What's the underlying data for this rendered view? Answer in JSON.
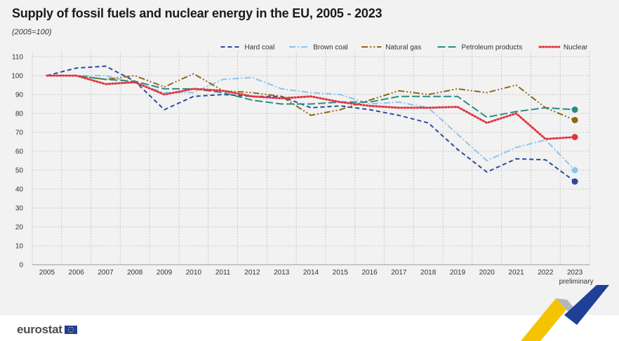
{
  "header": {
    "title": "Supply of fossil fuels and nuclear energy in the EU, 2005 - 2023",
    "subtitle": "(2005=100)"
  },
  "footer": {
    "logo_text": "eurostat"
  },
  "chart_data": {
    "type": "line",
    "title": "Supply of fossil fuels and nuclear energy in the EU, 2005 - 2023",
    "subtitle": "(2005=100)",
    "x": [
      "2005",
      "2006",
      "2007",
      "2008",
      "2009",
      "2010",
      "2011",
      "2012",
      "2013",
      "2014",
      "2015",
      "2016",
      "2017",
      "2018",
      "2019",
      "2020",
      "2021",
      "2022",
      "2023"
    ],
    "x_note": "preliminary",
    "ylim": [
      0,
      110
    ],
    "yticks": [
      0,
      10,
      20,
      30,
      40,
      50,
      60,
      70,
      80,
      90,
      100,
      110
    ],
    "grid": true,
    "legend_position": "top-right",
    "series": [
      {
        "name": "Hard coal",
        "color": "#2e4a9a",
        "dash": "dashed",
        "values": [
          100,
          104,
          105,
          97,
          82,
          89,
          90,
          89,
          89,
          83,
          84,
          82,
          79,
          75,
          61,
          49,
          56,
          55.5,
          44
        ]
      },
      {
        "name": "Brown coal",
        "color": "#8cc4ee",
        "dash": "dashdot",
        "values": [
          100,
          100,
          100,
          96,
          91,
          91,
          98,
          99,
          93,
          91,
          90,
          85,
          86,
          83,
          69,
          55,
          62,
          66,
          50
        ]
      },
      {
        "name": "Natural gas",
        "color": "#8b6914",
        "dash": "dashdotdot",
        "values": [
          100,
          100,
          98,
          100,
          94,
          101,
          92,
          91,
          89,
          79,
          82,
          87,
          92,
          90,
          93,
          91,
          95,
          83,
          76.5
        ]
      },
      {
        "name": "Petroleum products",
        "color": "#2a8c86",
        "dash": "longdash",
        "values": [
          100,
          100,
          98,
          97,
          93,
          93,
          91,
          87,
          85,
          85,
          86,
          86,
          89,
          89,
          89,
          78,
          81,
          83,
          82
        ]
      },
      {
        "name": "Nuclear",
        "color": "#e0373f",
        "dash": "dotted",
        "values": [
          100,
          100,
          95.5,
          96.5,
          90,
          93,
          92,
          89,
          88,
          89,
          86,
          84,
          83,
          83,
          83.5,
          75,
          80,
          66.5,
          67.5
        ]
      }
    ]
  }
}
